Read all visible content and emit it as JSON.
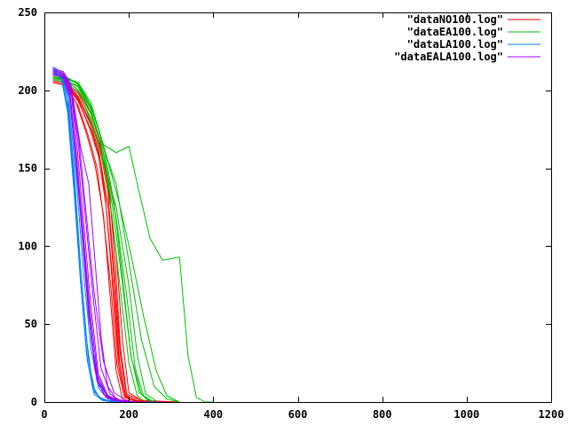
{
  "chart_data": {
    "type": "line",
    "title": "",
    "xlabel": "",
    "ylabel": "",
    "xlim": [
      0,
      1200
    ],
    "ylim": [
      0,
      250
    ],
    "x_ticks": [
      "0",
      "200",
      "400",
      "600",
      "800",
      "1000",
      "1200"
    ],
    "y_ticks": [
      "0",
      "50",
      "100",
      "150",
      "200",
      "250"
    ],
    "grid": false,
    "legend_position": "top-right",
    "series": [
      {
        "name": "\"dataNO100.log\"",
        "color": "#ff0000",
        "runs": [
          {
            "x": [
              20,
              50,
              80,
              110,
              130,
              145,
              160,
              175,
              190,
              210,
              250,
              300
            ],
            "y": [
              207,
              205,
              195,
              178,
              160,
              130,
              80,
              25,
              3,
              1,
              0,
              0
            ]
          },
          {
            "x": [
              20,
              50,
              80,
              110,
              130,
              150,
              165,
              180,
              195,
              220,
              300
            ],
            "y": [
              208,
              206,
              198,
              182,
              165,
              135,
              85,
              30,
              4,
              1,
              0
            ]
          },
          {
            "x": [
              20,
              50,
              75,
              100,
              120,
              140,
              155,
              170,
              185,
              210,
              260
            ],
            "y": [
              206,
              204,
              192,
              172,
              152,
              120,
              70,
              20,
              2,
              0,
              0
            ]
          },
          {
            "x": [
              20,
              50,
              80,
              110,
              130,
              150,
              170,
              185,
              200,
              230,
              300
            ],
            "y": [
              209,
              207,
              200,
              185,
              168,
              140,
              95,
              40,
              6,
              1,
              0
            ]
          },
          {
            "x": [
              20,
              50,
              80,
              105,
              125,
              140,
              158,
              172,
              190,
              220
            ],
            "y": [
              205,
              203,
              190,
              170,
              150,
              118,
              72,
              24,
              3,
              0
            ]
          },
          {
            "x": [
              20,
              50,
              80,
              115,
              135,
              155,
              168,
              180,
              195,
              230,
              320
            ],
            "y": [
              208,
              206,
              196,
              176,
              162,
              132,
              88,
              35,
              5,
              1,
              0
            ]
          },
          {
            "x": [
              20,
              50,
              80,
              108,
              128,
              146,
              162,
              176,
              192,
              215
            ],
            "y": [
              207,
              205,
              194,
              175,
              158,
              126,
              78,
              28,
              4,
              0
            ]
          },
          {
            "x": [
              20,
              50,
              80,
              112,
              132,
              152,
              166,
              178,
              193,
              225
            ],
            "y": [
              206,
              204,
              193,
              174,
              156,
              124,
              76,
              26,
              3,
              0
            ]
          }
        ]
      },
      {
        "name": "\"dataEA100.log\"",
        "color": "#00c000",
        "runs": [
          {
            "x": [
              20,
              50,
              80,
              110,
              140,
              170,
              200,
              220,
              250,
              280,
              300,
              320,
              340,
              360,
              380,
              400
            ],
            "y": [
              208,
              207,
              205,
              190,
              165,
              160,
              164,
              140,
              105,
              91,
              92,
              93,
              30,
              3,
              0,
              0
            ]
          },
          {
            "x": [
              20,
              50,
              80,
              110,
              140,
              170,
              200,
              230,
              260,
              290,
              320
            ],
            "y": [
              210,
              208,
              204,
              185,
              163,
              140,
              90,
              40,
              10,
              2,
              0
            ]
          },
          {
            "x": [
              20,
              50,
              80,
              110,
              140,
              170,
              200,
              220,
              240,
              270
            ],
            "y": [
              209,
              207,
              200,
              180,
              155,
              125,
              75,
              30,
              5,
              0
            ]
          },
          {
            "x": [
              20,
              50,
              80,
              110,
              140,
              170,
              195,
              215,
              235,
              260
            ],
            "y": [
              208,
              206,
              203,
              188,
              160,
              118,
              68,
              22,
              4,
              0
            ]
          },
          {
            "x": [
              20,
              50,
              80,
              110,
              140,
              165,
              185,
              205,
              225,
              250
            ],
            "y": [
              210,
              208,
              205,
              192,
              165,
              128,
              80,
              30,
              6,
              0
            ]
          },
          {
            "x": [
              20,
              50,
              80,
              110,
              135,
              160,
              180,
              200,
              220,
              240
            ],
            "y": [
              207,
              205,
              199,
              182,
              158,
              120,
              72,
              25,
              4,
              0
            ]
          },
          {
            "x": [
              20,
              50,
              80,
              115,
              145,
              175,
              205,
              235,
              265,
              290,
              320
            ],
            "y": [
              211,
              209,
              204,
              186,
              160,
              130,
              95,
              55,
              20,
              4,
              0
            ]
          },
          {
            "x": [
              20,
              50,
              80,
              110,
              138,
              162,
              184,
              206,
              230,
              255
            ],
            "y": [
              209,
              207,
              202,
              186,
              162,
              124,
              78,
              28,
              5,
              0
            ]
          }
        ]
      },
      {
        "name": "\"dataLA100.log\"",
        "color": "#0080ff",
        "runs": [
          {
            "x": [
              20,
              40,
              55,
              70,
              85,
              100,
              115,
              130,
              150,
              180,
              250
            ],
            "y": [
              215,
              212,
              195,
              150,
              90,
              40,
              10,
              3,
              1,
              0,
              0
            ]
          },
          {
            "x": [
              20,
              40,
              55,
              70,
              85,
              100,
              115,
              135,
              160,
              200
            ],
            "y": [
              213,
              210,
              190,
              140,
              80,
              30,
              8,
              2,
              0,
              0
            ]
          },
          {
            "x": [
              20,
              40,
              55,
              72,
              88,
              104,
              120,
              140,
              170
            ],
            "y": [
              212,
              209,
              188,
              138,
              78,
              28,
              6,
              1,
              0
            ]
          },
          {
            "x": [
              20,
              40,
              58,
              75,
              92,
              110,
              128,
              150,
              190
            ],
            "y": [
              214,
              211,
              192,
              145,
              85,
              35,
              9,
              2,
              0
            ]
          },
          {
            "x": [
              20,
              40,
              55,
              70,
              86,
              102,
              118,
              138,
              165
            ],
            "y": [
              211,
              208,
              186,
              136,
              76,
              26,
              5,
              1,
              0
            ]
          },
          {
            "x": [
              20,
              40,
              60,
              78,
              95,
              112,
              130,
              160,
              200
            ],
            "y": [
              213,
              210,
              194,
              148,
              88,
              38,
              10,
              2,
              0
            ]
          }
        ]
      },
      {
        "name": "\"dataEALA100.log\"",
        "color": "#a000ff",
        "runs": [
          {
            "x": [
              20,
              45,
              60,
              75,
              90,
              105,
              120,
              140,
              160,
              200,
              250
            ],
            "y": [
              212,
              210,
              200,
              160,
              110,
              60,
              20,
              5,
              1,
              0,
              0
            ]
          },
          {
            "x": [
              20,
              45,
              60,
              75,
              90,
              105,
              125,
              150,
              180,
              220,
              280
            ],
            "y": [
              211,
              209,
              198,
              155,
              105,
              55,
              15,
              3,
              1,
              0,
              0
            ]
          },
          {
            "x": [
              20,
              45,
              62,
              78,
              94,
              110,
              128,
              150,
              180,
              220
            ],
            "y": [
              213,
              211,
              202,
              162,
              112,
              62,
              18,
              4,
              1,
              0
            ]
          },
          {
            "x": [
              20,
              45,
              65,
              85,
              105,
              120,
              135,
              150,
              170,
              200
            ],
            "y": [
              212,
              210,
              200,
              165,
              140,
              90,
              40,
              10,
              2,
              0
            ]
          },
          {
            "x": [
              20,
              45,
              60,
              75,
              92,
              108,
              124,
              146,
              175,
              210
            ],
            "y": [
              210,
              208,
              196,
              152,
              102,
              52,
              14,
              3,
              1,
              0
            ]
          },
          {
            "x": [
              20,
              45,
              62,
              80,
              98,
              116,
              134,
              156,
              185
            ],
            "y": [
              214,
              212,
              204,
              166,
              116,
              66,
              22,
              5,
              0
            ]
          },
          {
            "x": [
              20,
              45,
              60,
              76,
              92,
              108,
              126,
              148,
              172,
              205
            ],
            "y": [
              211,
              209,
              199,
              158,
              108,
              58,
              17,
              4,
              1,
              0
            ]
          },
          {
            "x": [
              20,
              45,
              63,
              82,
              100,
              118,
              140,
              165,
              200
            ],
            "y": [
              213,
              211,
              203,
              168,
              118,
              70,
              26,
              6,
              0
            ]
          }
        ]
      }
    ]
  }
}
